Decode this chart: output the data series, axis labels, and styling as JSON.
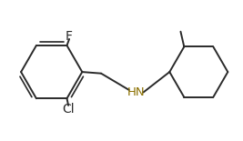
{
  "bg_color": "#ffffff",
  "line_color": "#2a2a2a",
  "hn_color": "#8B7000",
  "atom_F": "F",
  "atom_Cl": "Cl",
  "atom_HN": "HN",
  "figure_width": 2.67,
  "figure_height": 1.55,
  "dpi": 100,
  "linewidth": 1.4,
  "fontsize": 10
}
